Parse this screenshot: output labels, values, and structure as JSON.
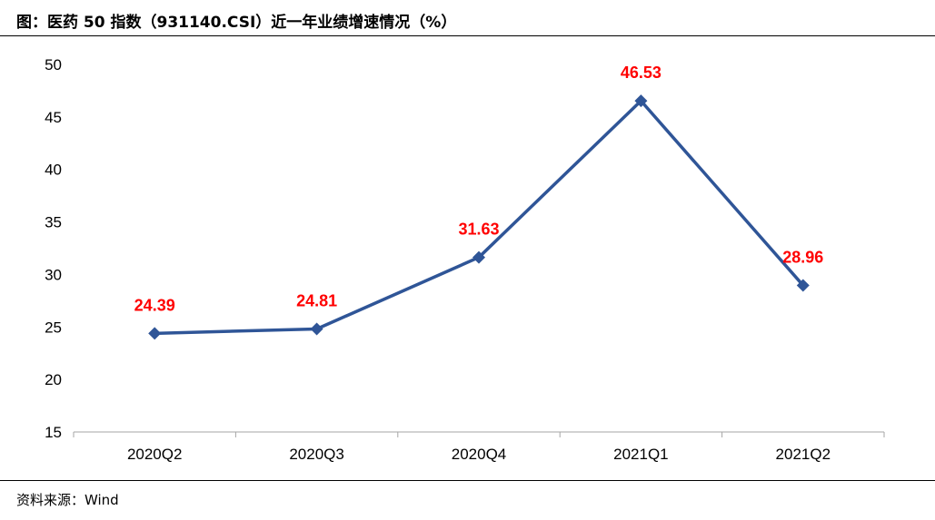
{
  "title": "图：医药 50 指数（931140.CSI）近一年业绩增速情况（%）",
  "source": "资料来源：Wind",
  "chart_data": {
    "type": "line",
    "categories": [
      "2020Q2",
      "2020Q3",
      "2020Q4",
      "2021Q1",
      "2021Q2"
    ],
    "series": [
      {
        "values": [
          24.39,
          24.81,
          31.63,
          46.53,
          28.96
        ],
        "color": "#2f5597"
      }
    ],
    "data_labels": [
      "24.39",
      "24.81",
      "31.63",
      "46.53",
      "28.96"
    ],
    "data_label_color": "#ff0000",
    "ylim": [
      15,
      50
    ],
    "yticks": [
      "15",
      "20",
      "25",
      "30",
      "35",
      "40",
      "45",
      "50"
    ],
    "grid": false,
    "marker": "diamond",
    "xlabel": "",
    "ylabel": ""
  }
}
